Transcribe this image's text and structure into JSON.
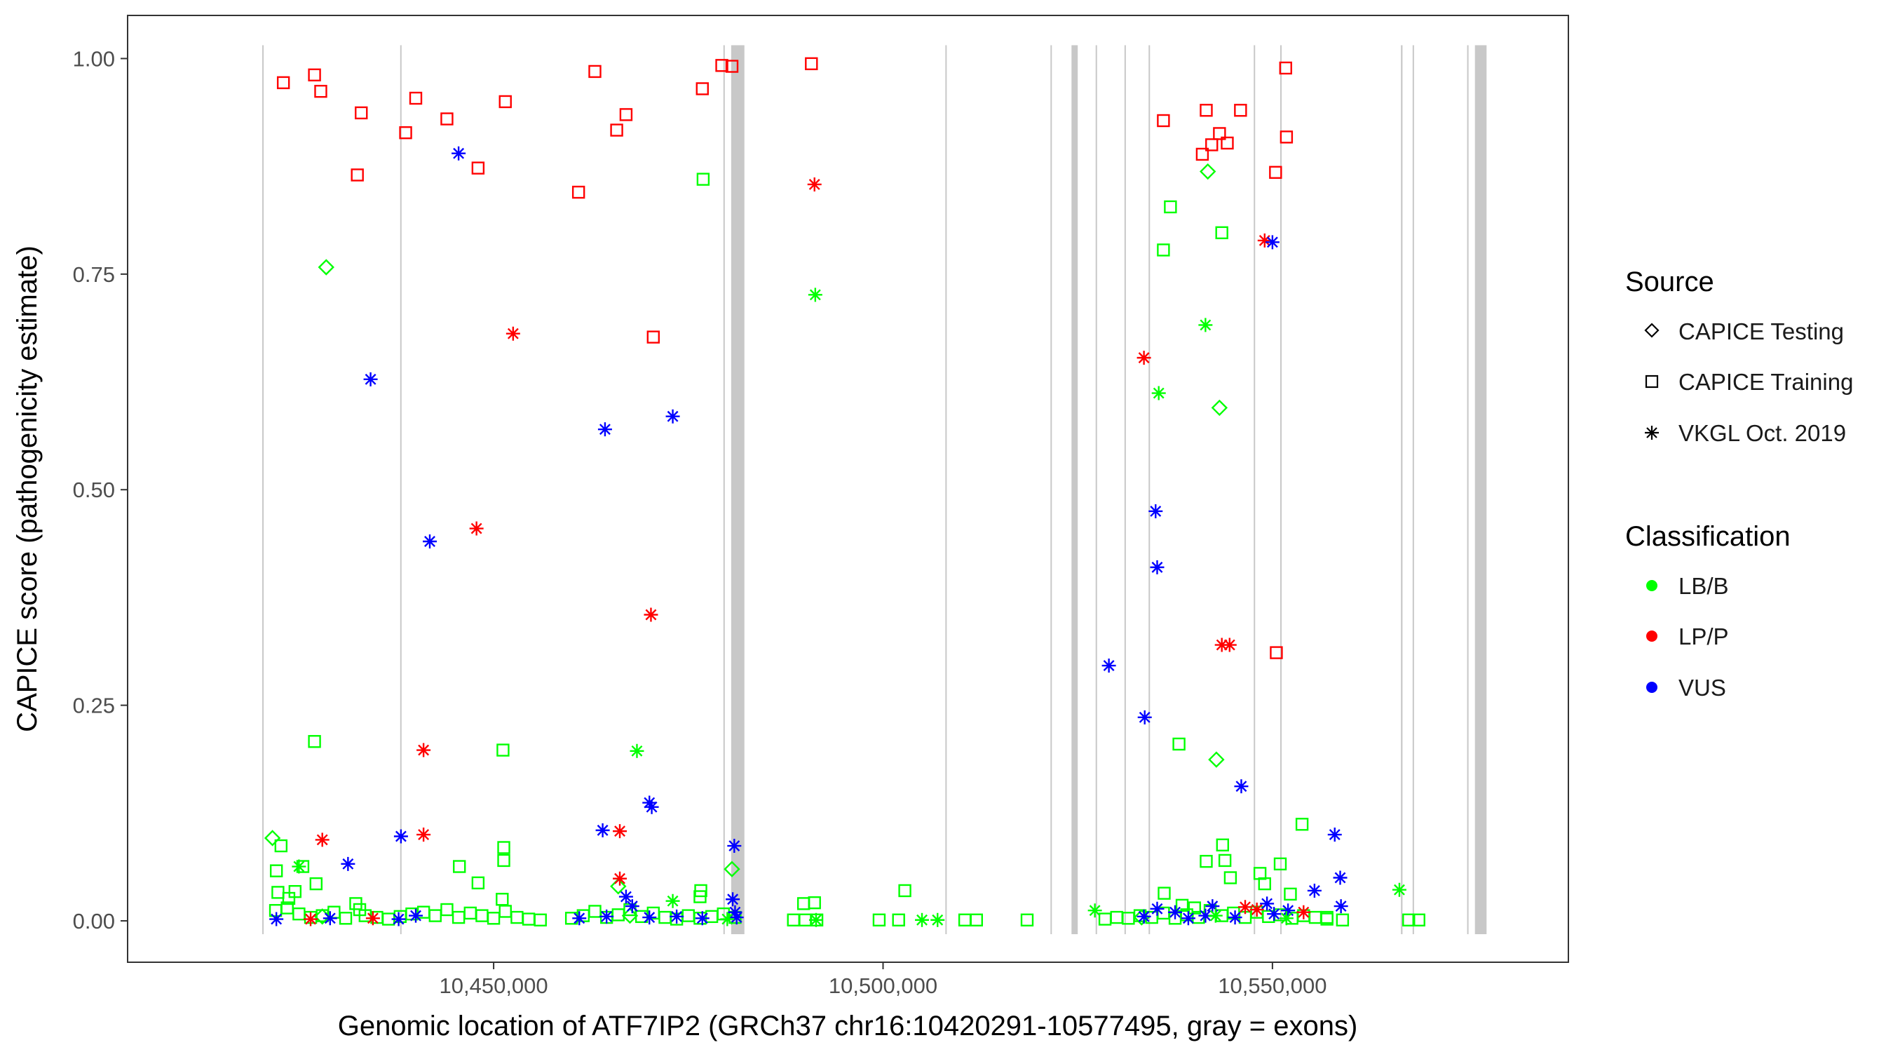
{
  "chart_data": {
    "type": "scatter",
    "title": "",
    "xlabel": "Genomic location of ATF7IP2 (GRCh37 chr16:10420291-10577495, gray = exons)",
    "ylabel": "CAPICE score (pathogenicity estimate)",
    "xlim": [
      10403000,
      10588000
    ],
    "ylim": [
      -0.048,
      1.05
    ],
    "x_ticks": [
      {
        "value": 10450000,
        "label": "10,450,000"
      },
      {
        "value": 10500000,
        "label": "10,500,000"
      },
      {
        "value": 10550000,
        "label": "10,550,000"
      }
    ],
    "y_ticks": [
      {
        "value": 0.0,
        "label": "0.00"
      },
      {
        "value": 0.25,
        "label": "0.25"
      },
      {
        "value": 0.5,
        "label": "0.50"
      },
      {
        "value": 0.75,
        "label": "0.75"
      },
      {
        "value": 1.0,
        "label": "1.00"
      }
    ],
    "colors": {
      "LB/B": "#00ff00",
      "LP/P": "#ff0000",
      "VUS": "#0000ff",
      "exon": "#c8c8c8",
      "border": "#333333"
    },
    "exons": [
      {
        "start": 10420290,
        "end": 10420390
      },
      {
        "start": 10438000,
        "end": 10438080
      },
      {
        "start": 10479500,
        "end": 10479650
      },
      {
        "start": 10480500,
        "end": 10482200
      },
      {
        "start": 10508000,
        "end": 10508100
      },
      {
        "start": 10521500,
        "end": 10521600
      },
      {
        "start": 10524200,
        "end": 10525000
      },
      {
        "start": 10527300,
        "end": 10527450
      },
      {
        "start": 10531000,
        "end": 10531100
      },
      {
        "start": 10534100,
        "end": 10534250
      },
      {
        "start": 10547600,
        "end": 10547750
      },
      {
        "start": 10551000,
        "end": 10551100
      },
      {
        "start": 10566500,
        "end": 10566700
      },
      {
        "start": 10568000,
        "end": 10568080
      },
      {
        "start": 10575000,
        "end": 10575100
      },
      {
        "start": 10576000,
        "end": 10577495
      }
    ],
    "legend": {
      "position": "right",
      "source_title": "Source",
      "source_entries": [
        {
          "label": "CAPICE Testing",
          "shape": "diamond"
        },
        {
          "label": "CAPICE Training",
          "shape": "square"
        },
        {
          "label": "VKGL Oct. 2019",
          "shape": "asterisk"
        }
      ],
      "class_title": "Classification",
      "class_entries": [
        {
          "label": "LB/B",
          "key": "LB/B"
        },
        {
          "label": "LP/P",
          "key": "LP/P"
        },
        {
          "label": "VUS",
          "key": "VUS"
        }
      ]
    },
    "series": [
      {
        "name": "CAPICE Training LP/P",
        "shape": "square",
        "class": "LP/P",
        "points": [
          [
            10423000,
            0.972
          ],
          [
            10427000,
            0.981
          ],
          [
            10427800,
            0.962
          ],
          [
            10432500,
            0.865
          ],
          [
            10433000,
            0.937
          ],
          [
            10438700,
            0.914
          ],
          [
            10440000,
            0.954
          ],
          [
            10444000,
            0.93
          ],
          [
            10448000,
            0.873
          ],
          [
            10451500,
            0.95
          ],
          [
            10460900,
            0.845
          ],
          [
            10463000,
            0.985
          ],
          [
            10465800,
            0.917
          ],
          [
            10467000,
            0.935
          ],
          [
            10470500,
            0.677
          ],
          [
            10476800,
            0.965
          ],
          [
            10479300,
            0.992
          ],
          [
            10480600,
            0.991
          ],
          [
            10490800,
            0.994
          ],
          [
            10536000,
            0.928
          ],
          [
            10541500,
            0.94
          ],
          [
            10541000,
            0.889
          ],
          [
            10542200,
            0.9
          ],
          [
            10543200,
            0.913
          ],
          [
            10544200,
            0.902
          ],
          [
            10545900,
            0.94
          ],
          [
            10550400,
            0.868
          ],
          [
            10550500,
            0.311
          ],
          [
            10551700,
            0.989
          ],
          [
            10551800,
            0.909
          ]
        ]
      },
      {
        "name": "CAPICE Training LB/B",
        "shape": "square",
        "class": "LB/B",
        "points": [
          [
            10476900,
            0.86
          ],
          [
            10536900,
            0.828
          ],
          [
            10536000,
            0.778
          ],
          [
            10543500,
            0.798
          ],
          [
            10538000,
            0.205
          ],
          [
            10427000,
            0.208
          ],
          [
            10451200,
            0.198
          ],
          [
            10551000,
            0.066
          ],
          [
            10553800,
            0.112
          ],
          [
            10422100,
            0.058
          ],
          [
            10422300,
            0.033
          ],
          [
            10422700,
            0.087
          ],
          [
            10424500,
            0.034
          ],
          [
            10427200,
            0.043
          ],
          [
            10425500,
            0.063
          ],
          [
            10423700,
            0.026
          ],
          [
            10432300,
            0.02
          ],
          [
            10432800,
            0.013
          ],
          [
            10445600,
            0.063
          ],
          [
            10448000,
            0.044
          ],
          [
            10451300,
            0.085
          ],
          [
            10451300,
            0.07
          ],
          [
            10451100,
            0.025
          ],
          [
            10476600,
            0.035
          ],
          [
            10476500,
            0.028
          ],
          [
            10489800,
            0.02
          ],
          [
            10491200,
            0.021
          ],
          [
            10502800,
            0.035
          ],
          [
            10541500,
            0.069
          ],
          [
            10543600,
            0.088
          ],
          [
            10543900,
            0.07
          ],
          [
            10544600,
            0.05
          ],
          [
            10548400,
            0.055
          ],
          [
            10549000,
            0.043
          ],
          [
            10536100,
            0.032
          ],
          [
            10538400,
            0.018
          ],
          [
            10540000,
            0.015
          ],
          [
            10552300,
            0.031
          ],
          [
            10557000,
            0.004
          ],
          [
            10422000,
            0.012
          ],
          [
            10423500,
            0.015
          ],
          [
            10425000,
            0.008
          ],
          [
            10426500,
            0.004
          ],
          [
            10428000,
            0.006
          ],
          [
            10429500,
            0.01
          ],
          [
            10431000,
            0.003
          ],
          [
            10433500,
            0.006
          ],
          [
            10435000,
            0.004
          ],
          [
            10436500,
            0.002
          ],
          [
            10438000,
            0.005
          ],
          [
            10439500,
            0.008
          ],
          [
            10441000,
            0.01
          ],
          [
            10442500,
            0.006
          ],
          [
            10444000,
            0.013
          ],
          [
            10445500,
            0.004
          ],
          [
            10447000,
            0.009
          ],
          [
            10448500,
            0.006
          ],
          [
            10450000,
            0.003
          ],
          [
            10451500,
            0.011
          ],
          [
            10453000,
            0.004
          ],
          [
            10454500,
            0.002
          ],
          [
            10456000,
            0.001
          ],
          [
            10460000,
            0.003
          ],
          [
            10461500,
            0.006
          ],
          [
            10463000,
            0.011
          ],
          [
            10464500,
            0.004
          ],
          [
            10466000,
            0.007
          ],
          [
            10467500,
            0.013
          ],
          [
            10469000,
            0.005
          ],
          [
            10470500,
            0.009
          ],
          [
            10472000,
            0.004
          ],
          [
            10473500,
            0.002
          ],
          [
            10475000,
            0.006
          ],
          [
            10476500,
            0.003
          ],
          [
            10478000,
            0.005
          ],
          [
            10479500,
            0.008
          ],
          [
            10481000,
            0.004
          ],
          [
            10488500,
            0.001
          ],
          [
            10490000,
            0.001
          ],
          [
            10491500,
            0.001
          ],
          [
            10499500,
            0.001
          ],
          [
            10502000,
            0.001
          ],
          [
            10510500,
            0.001
          ],
          [
            10512000,
            0.001
          ],
          [
            10518500,
            0.001
          ],
          [
            10528500,
            0.002
          ],
          [
            10530000,
            0.004
          ],
          [
            10531500,
            0.003
          ],
          [
            10533000,
            0.006
          ],
          [
            10534500,
            0.004
          ],
          [
            10536000,
            0.009
          ],
          [
            10537500,
            0.003
          ],
          [
            10539000,
            0.007
          ],
          [
            10540500,
            0.004
          ],
          [
            10542000,
            0.012
          ],
          [
            10543500,
            0.006
          ],
          [
            10545000,
            0.009
          ],
          [
            10546500,
            0.004
          ],
          [
            10548000,
            0.01
          ],
          [
            10549500,
            0.005
          ],
          [
            10551000,
            0.007
          ],
          [
            10552500,
            0.003
          ],
          [
            10554000,
            0.006
          ],
          [
            10555500,
            0.004
          ],
          [
            10557000,
            0.002
          ],
          [
            10559000,
            0.001
          ],
          [
            10567500,
            0.001
          ],
          [
            10568800,
            0.001
          ]
        ]
      },
      {
        "name": "CAPICE Testing LB/B",
        "shape": "diamond",
        "class": "LB/B",
        "points": [
          [
            10428500,
            0.758
          ],
          [
            10421600,
            0.096
          ],
          [
            10466000,
            0.04
          ],
          [
            10480600,
            0.06
          ],
          [
            10541700,
            0.869
          ],
          [
            10543200,
            0.595
          ],
          [
            10542800,
            0.187
          ],
          [
            10428000,
            0.005
          ],
          [
            10467500,
            0.006
          ],
          [
            10533200,
            0.004
          ]
        ]
      },
      {
        "name": "VKGL Oct. 2019 LP/P",
        "shape": "asterisk",
        "class": "LP/P",
        "points": [
          [
            10491200,
            0.854
          ],
          [
            10452500,
            0.681
          ],
          [
            10533500,
            0.653
          ],
          [
            10447800,
            0.455
          ],
          [
            10470200,
            0.355
          ],
          [
            10543500,
            0.32
          ],
          [
            10544500,
            0.32
          ],
          [
            10441000,
            0.198
          ],
          [
            10441000,
            0.1
          ],
          [
            10428000,
            0.094
          ],
          [
            10466200,
            0.104
          ],
          [
            10466200,
            0.049
          ],
          [
            10549000,
            0.789
          ],
          [
            10426500,
            0.002
          ],
          [
            10434500,
            0.003
          ],
          [
            10546500,
            0.016
          ],
          [
            10548000,
            0.013
          ],
          [
            10554000,
            0.01
          ]
        ]
      },
      {
        "name": "VKGL Oct. 2019 VUS",
        "shape": "asterisk",
        "class": "VUS",
        "points": [
          [
            10445500,
            0.89
          ],
          [
            10434200,
            0.628
          ],
          [
            10473000,
            0.585
          ],
          [
            10464300,
            0.57
          ],
          [
            10441800,
            0.44
          ],
          [
            10535000,
            0.475
          ],
          [
            10535200,
            0.41
          ],
          [
            10529000,
            0.296
          ],
          [
            10533600,
            0.236
          ],
          [
            10546000,
            0.156
          ],
          [
            10470000,
            0.137
          ],
          [
            10470300,
            0.132
          ],
          [
            10464000,
            0.105
          ],
          [
            10438100,
            0.098
          ],
          [
            10480900,
            0.087
          ],
          [
            10431300,
            0.066
          ],
          [
            10558000,
            0.1
          ],
          [
            10558700,
            0.05
          ],
          [
            10555400,
            0.035
          ],
          [
            10558800,
            0.017
          ],
          [
            10550000,
            0.787
          ],
          [
            10422100,
            0.002
          ],
          [
            10429000,
            0.003
          ],
          [
            10437800,
            0.002
          ],
          [
            10440000,
            0.006
          ],
          [
            10461000,
            0.003
          ],
          [
            10464500,
            0.005
          ],
          [
            10467000,
            0.028
          ],
          [
            10467800,
            0.017
          ],
          [
            10470000,
            0.004
          ],
          [
            10473500,
            0.005
          ],
          [
            10476800,
            0.003
          ],
          [
            10480700,
            0.025
          ],
          [
            10481000,
            0.01
          ],
          [
            10481200,
            0.004
          ],
          [
            10533500,
            0.005
          ],
          [
            10535200,
            0.014
          ],
          [
            10537500,
            0.01
          ],
          [
            10539200,
            0.003
          ],
          [
            10541400,
            0.006
          ],
          [
            10542300,
            0.017
          ],
          [
            10545200,
            0.004
          ],
          [
            10549300,
            0.02
          ],
          [
            10550200,
            0.008
          ],
          [
            10552000,
            0.012
          ]
        ]
      },
      {
        "name": "VKGL Oct. 2019 LB/B",
        "shape": "asterisk",
        "class": "LB/B",
        "points": [
          [
            10491300,
            0.726
          ],
          [
            10541400,
            0.691
          ],
          [
            10535400,
            0.612
          ],
          [
            10468400,
            0.197
          ],
          [
            10425000,
            0.063
          ],
          [
            10566300,
            0.036
          ],
          [
            10505000,
            0.001
          ],
          [
            10507000,
            0.001
          ],
          [
            10473000,
            0.023
          ],
          [
            10527200,
            0.012
          ],
          [
            10491400,
            0.001
          ],
          [
            10480000,
            0.002
          ],
          [
            10542700,
            0.006
          ],
          [
            10551800,
            0.003
          ]
        ]
      }
    ]
  }
}
